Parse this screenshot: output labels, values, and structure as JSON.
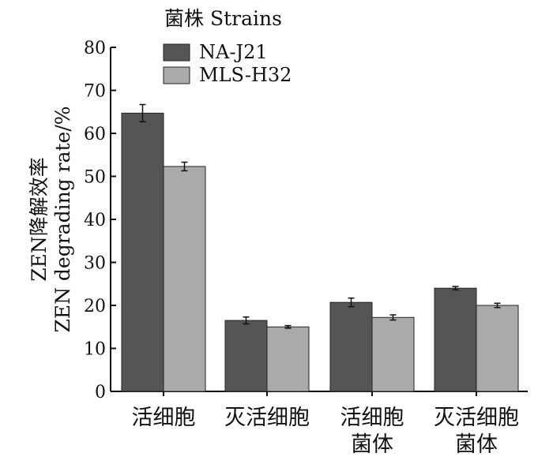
{
  "chart_data": {
    "type": "bar",
    "categories": [
      [
        "活细胞"
      ],
      [
        "灭活细胞"
      ],
      [
        "活细胞",
        "菌体"
      ],
      [
        "灭活细胞",
        "菌体"
      ]
    ],
    "series": [
      {
        "name": "NA-J21",
        "values": [
          64.7,
          16.5,
          20.7,
          24.0
        ],
        "errors": [
          2.0,
          0.8,
          1.0,
          0.4
        ],
        "color": "#555555"
      },
      {
        "name": "MLS-H32",
        "values": [
          52.3,
          15.0,
          17.2,
          20.0
        ],
        "errors": [
          1.0,
          0.3,
          0.6,
          0.5
        ],
        "color": "#aaaaaa"
      }
    ],
    "legend_title": "菌株 Strains",
    "legend_position": "top-center",
    "ylabel": [
      "ZEN降解效率",
      "ZEN degrading rate/%"
    ],
    "xlabel": "",
    "ylim": [
      0,
      80
    ],
    "yticks": [
      0,
      10,
      20,
      30,
      40,
      50,
      60,
      70,
      80
    ],
    "grid": false
  }
}
